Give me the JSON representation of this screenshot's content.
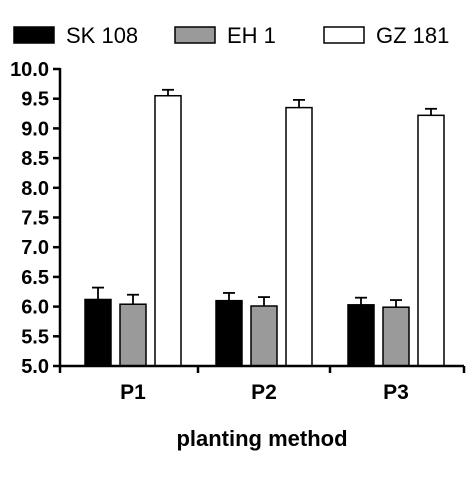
{
  "chart_data": {
    "type": "bar",
    "title": "",
    "xlabel": "planting method",
    "ylabel": "",
    "categories": [
      "P1",
      "P2",
      "P3"
    ],
    "ylim": [
      5.0,
      10.0
    ],
    "yticks": [
      "5.0",
      "5.5",
      "6.0",
      "6.5",
      "7.0",
      "7.5",
      "8.0",
      "8.5",
      "9.0",
      "9.5",
      "10.0"
    ],
    "grid": false,
    "legend_position": "top",
    "series": [
      {
        "name": "SK 108",
        "color": "#000000",
        "values": [
          6.12,
          6.1,
          6.03
        ],
        "errors": [
          0.2,
          0.13,
          0.12
        ]
      },
      {
        "name": "EH 1",
        "color": "#9a9a9a",
        "values": [
          6.04,
          6.01,
          5.99
        ],
        "errors": [
          0.16,
          0.15,
          0.12
        ]
      },
      {
        "name": "GZ 181",
        "color": "#ffffff",
        "values": [
          9.55,
          9.35,
          9.22
        ],
        "errors": [
          0.1,
          0.13,
          0.11
        ]
      }
    ]
  }
}
